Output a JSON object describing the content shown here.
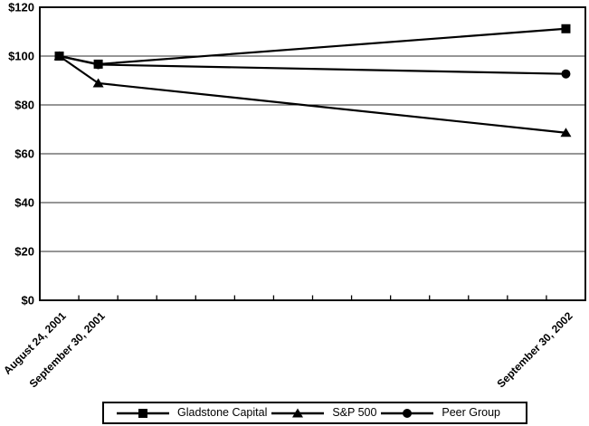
{
  "figure": {
    "background": "#ffffff",
    "line_color": "#000000",
    "grid_color": "#2e2e2e",
    "border_color": "#000000"
  },
  "chart_data": {
    "type": "line",
    "title": "",
    "xlabel": "",
    "ylabel": "",
    "grid": true,
    "legend_position": "bottom",
    "y_axis": {
      "min": 0,
      "max": 120,
      "step": 20,
      "tick_labels": [
        "$0",
        "$20",
        "$40",
        "$60",
        "$80",
        "$100",
        "$120"
      ]
    },
    "x_axis": {
      "num_categories": 14,
      "num_minor_ticks": 13,
      "point_indices": [
        0,
        1,
        13
      ],
      "point_labels": [
        "August 24, 2001",
        "September 30, 2001",
        "September 30, 2002"
      ]
    },
    "series": [
      {
        "name": "Gladstone Capital",
        "marker": "square",
        "values": [
          100,
          96.7,
          111.2
        ]
      },
      {
        "name": "S&P 500",
        "marker": "triangle",
        "values": [
          100,
          88.9,
          68.6
        ]
      },
      {
        "name": "Peer Group",
        "marker": "circle",
        "values": [
          100,
          96.5,
          92.7
        ]
      }
    ]
  }
}
